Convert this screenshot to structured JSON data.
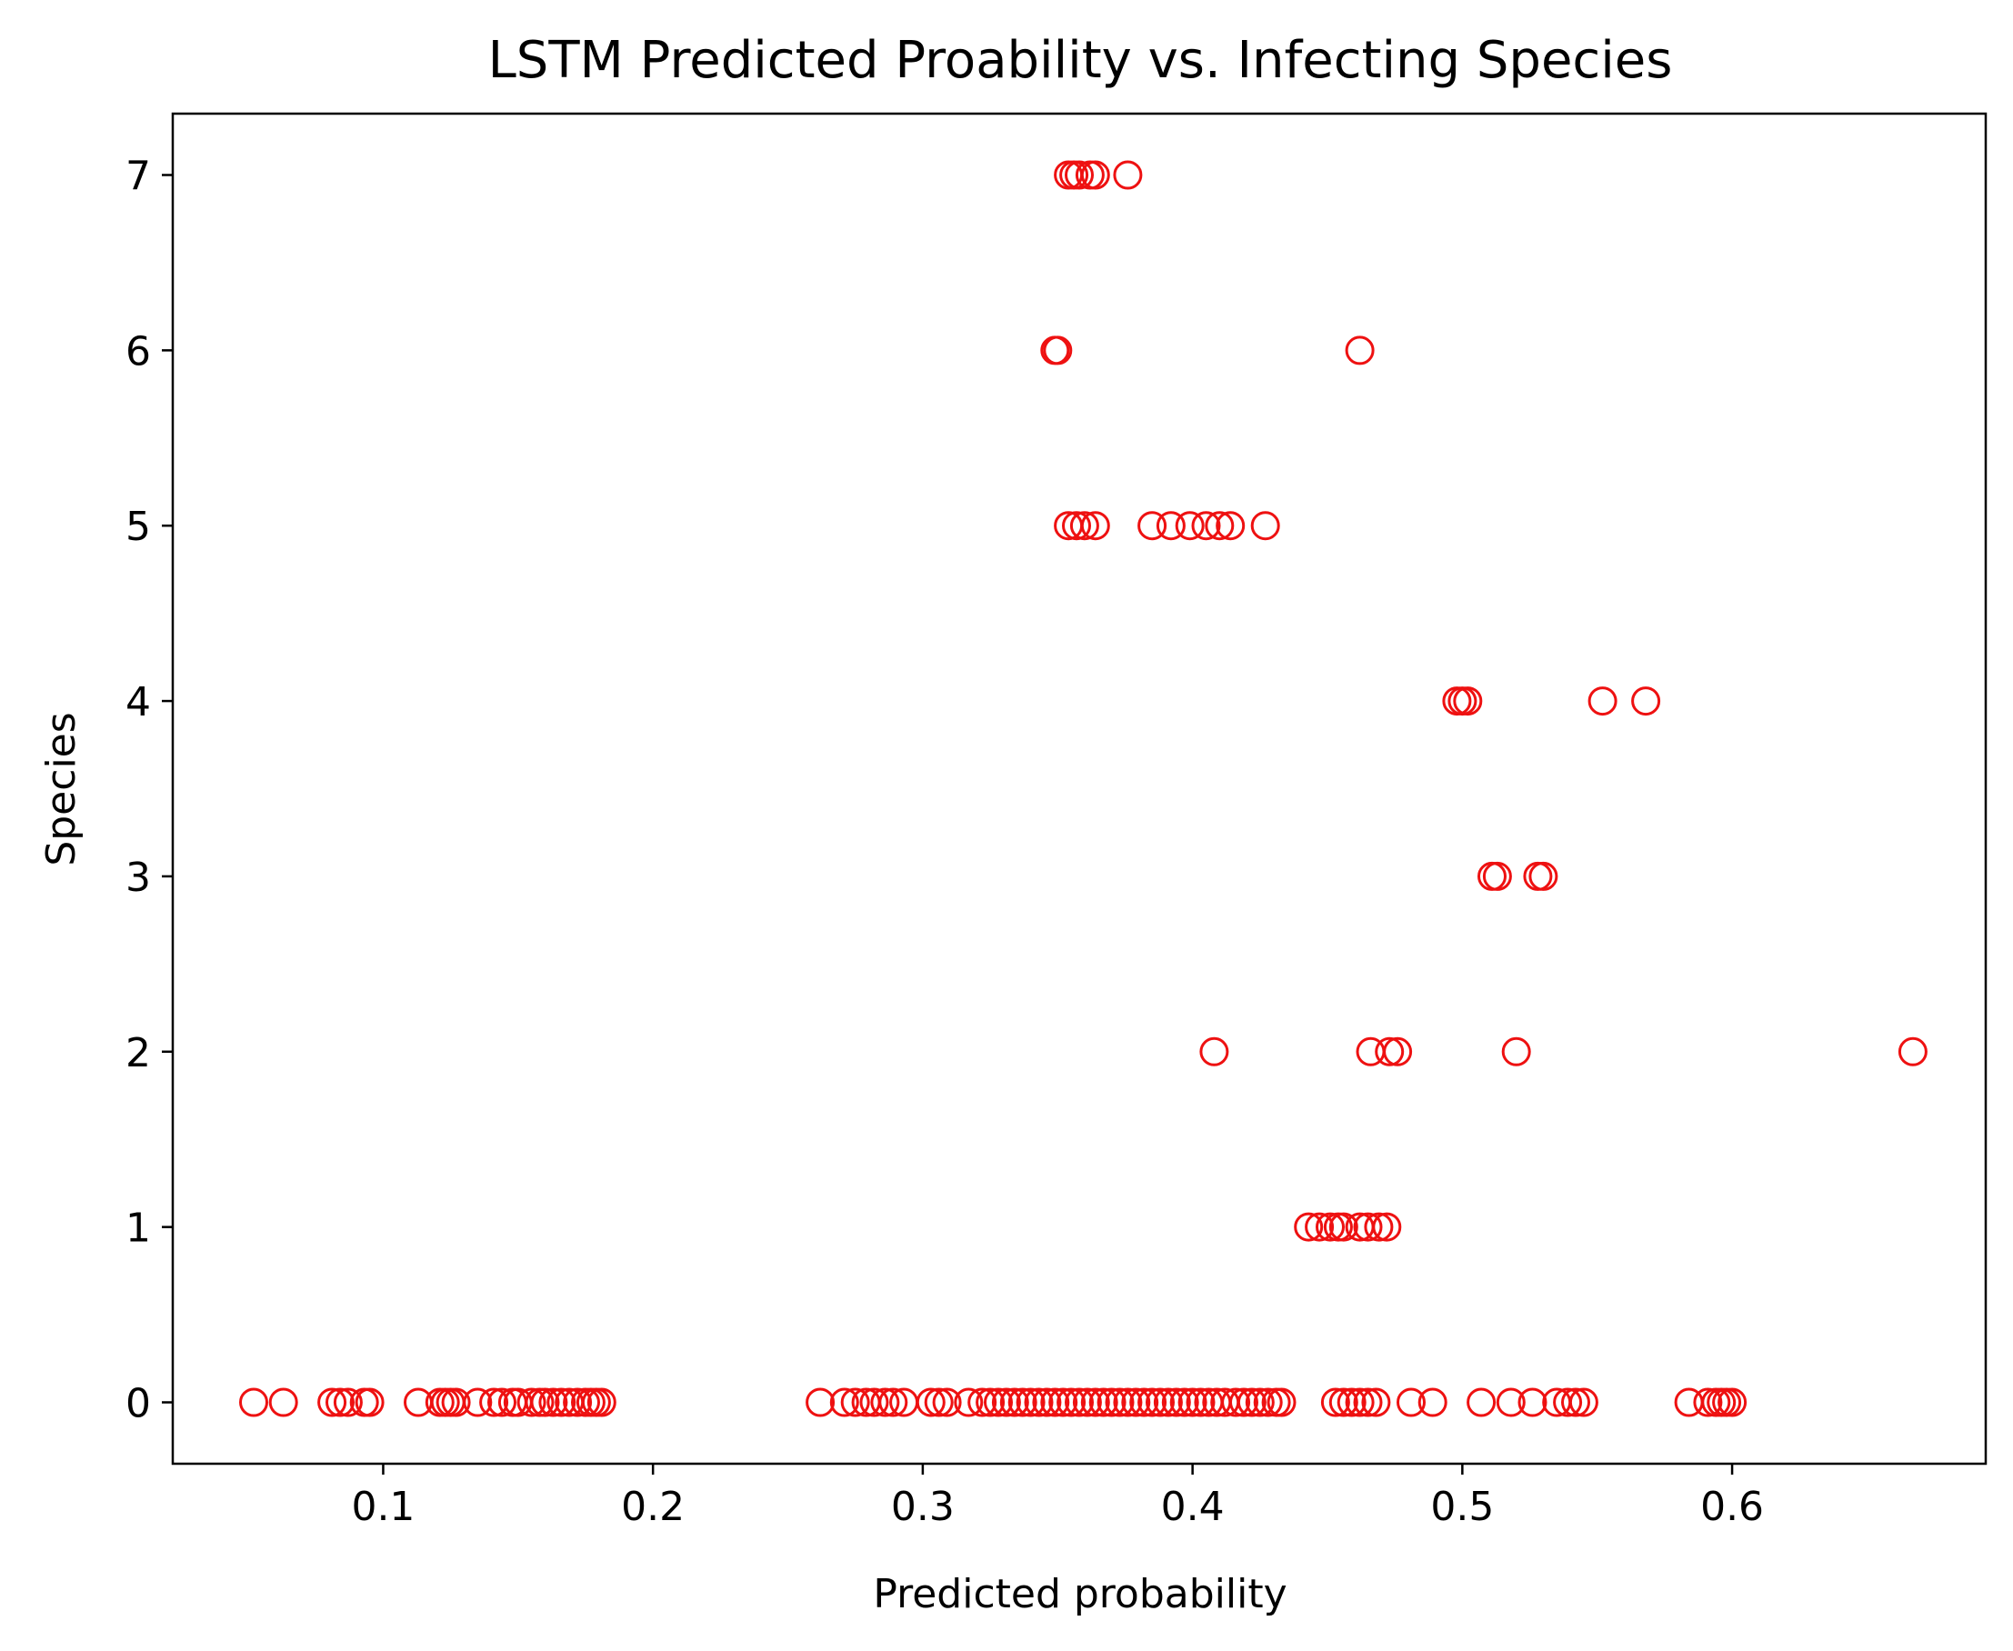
{
  "chart_data": {
    "type": "scatter",
    "title": "LSTM Predicted Proability vs. Infecting Species",
    "xlabel": "Predicted probability",
    "ylabel": "Species",
    "xlim": [
      0.022,
      0.694
    ],
    "ylim": [
      -0.35,
      7.35
    ],
    "xticks": [
      0.1,
      0.2,
      0.3,
      0.4,
      0.5,
      0.6
    ],
    "xtick_labels": [
      "0.1",
      "0.2",
      "0.3",
      "0.4",
      "0.5",
      "0.6"
    ],
    "yticks": [
      0,
      1,
      2,
      3,
      4,
      5,
      6,
      7
    ],
    "ytick_labels": [
      "0",
      "1",
      "2",
      "3",
      "4",
      "5",
      "6",
      "7"
    ],
    "grid": false,
    "marker": "open-circle",
    "marker_color": "#ee1111",
    "series": [
      {
        "points": [
          [
            0.052,
            0
          ],
          [
            0.063,
            0
          ],
          [
            0.081,
            0
          ],
          [
            0.084,
            0
          ],
          [
            0.087,
            0
          ],
          [
            0.093,
            0
          ],
          [
            0.095,
            0
          ],
          [
            0.113,
            0
          ],
          [
            0.121,
            0
          ],
          [
            0.123,
            0
          ],
          [
            0.125,
            0
          ],
          [
            0.127,
            0
          ],
          [
            0.135,
            0
          ],
          [
            0.141,
            0
          ],
          [
            0.144,
            0
          ],
          [
            0.148,
            0
          ],
          [
            0.15,
            0
          ],
          [
            0.155,
            0
          ],
          [
            0.158,
            0
          ],
          [
            0.16,
            0
          ],
          [
            0.163,
            0
          ],
          [
            0.166,
            0
          ],
          [
            0.169,
            0
          ],
          [
            0.172,
            0
          ],
          [
            0.175,
            0
          ],
          [
            0.177,
            0
          ],
          [
            0.179,
            0
          ],
          [
            0.181,
            0
          ],
          [
            0.262,
            0
          ],
          [
            0.271,
            0
          ],
          [
            0.275,
            0
          ],
          [
            0.279,
            0
          ],
          [
            0.282,
            0
          ],
          [
            0.286,
            0
          ],
          [
            0.289,
            0
          ],
          [
            0.293,
            0
          ],
          [
            0.303,
            0
          ],
          [
            0.306,
            0
          ],
          [
            0.309,
            0
          ],
          [
            0.317,
            0
          ],
          [
            0.322,
            0
          ],
          [
            0.325,
            0
          ],
          [
            0.328,
            0
          ],
          [
            0.331,
            0
          ],
          [
            0.334,
            0
          ],
          [
            0.337,
            0
          ],
          [
            0.34,
            0
          ],
          [
            0.343,
            0
          ],
          [
            0.346,
            0
          ],
          [
            0.349,
            0
          ],
          [
            0.352,
            0
          ],
          [
            0.355,
            0
          ],
          [
            0.358,
            0
          ],
          [
            0.361,
            0
          ],
          [
            0.364,
            0
          ],
          [
            0.367,
            0
          ],
          [
            0.37,
            0
          ],
          [
            0.373,
            0
          ],
          [
            0.376,
            0
          ],
          [
            0.379,
            0
          ],
          [
            0.382,
            0
          ],
          [
            0.385,
            0
          ],
          [
            0.388,
            0
          ],
          [
            0.391,
            0
          ],
          [
            0.394,
            0
          ],
          [
            0.397,
            0
          ],
          [
            0.4,
            0
          ],
          [
            0.403,
            0
          ],
          [
            0.406,
            0
          ],
          [
            0.409,
            0
          ],
          [
            0.412,
            0
          ],
          [
            0.416,
            0
          ],
          [
            0.419,
            0
          ],
          [
            0.422,
            0
          ],
          [
            0.425,
            0
          ],
          [
            0.428,
            0
          ],
          [
            0.431,
            0
          ],
          [
            0.433,
            0
          ],
          [
            0.453,
            0
          ],
          [
            0.456,
            0
          ],
          [
            0.459,
            0
          ],
          [
            0.462,
            0
          ],
          [
            0.465,
            0
          ],
          [
            0.468,
            0
          ],
          [
            0.481,
            0
          ],
          [
            0.489,
            0
          ],
          [
            0.507,
            0
          ],
          [
            0.518,
            0
          ],
          [
            0.526,
            0
          ],
          [
            0.535,
            0
          ],
          [
            0.539,
            0
          ],
          [
            0.542,
            0
          ],
          [
            0.545,
            0
          ],
          [
            0.584,
            0
          ],
          [
            0.591,
            0
          ],
          [
            0.594,
            0
          ],
          [
            0.596,
            0
          ],
          [
            0.598,
            0
          ],
          [
            0.6,
            0
          ],
          [
            0.443,
            1
          ],
          [
            0.447,
            1
          ],
          [
            0.451,
            1
          ],
          [
            0.454,
            1
          ],
          [
            0.456,
            1
          ],
          [
            0.462,
            1
          ],
          [
            0.465,
            1
          ],
          [
            0.469,
            1
          ],
          [
            0.472,
            1
          ],
          [
            0.408,
            2
          ],
          [
            0.466,
            2
          ],
          [
            0.473,
            2
          ],
          [
            0.476,
            2
          ],
          [
            0.52,
            2
          ],
          [
            0.667,
            2
          ],
          [
            0.511,
            3
          ],
          [
            0.513,
            3
          ],
          [
            0.528,
            3
          ],
          [
            0.53,
            3
          ],
          [
            0.498,
            4
          ],
          [
            0.5,
            4
          ],
          [
            0.502,
            4
          ],
          [
            0.552,
            4
          ],
          [
            0.568,
            4
          ],
          [
            0.354,
            5
          ],
          [
            0.357,
            5
          ],
          [
            0.36,
            5
          ],
          [
            0.364,
            5
          ],
          [
            0.385,
            5
          ],
          [
            0.392,
            5
          ],
          [
            0.399,
            5
          ],
          [
            0.405,
            5
          ],
          [
            0.41,
            5
          ],
          [
            0.414,
            5
          ],
          [
            0.427,
            5
          ],
          [
            0.349,
            6
          ],
          [
            0.35,
            6
          ],
          [
            0.462,
            6
          ],
          [
            0.354,
            7
          ],
          [
            0.356,
            7
          ],
          [
            0.358,
            7
          ],
          [
            0.362,
            7
          ],
          [
            0.364,
            7
          ],
          [
            0.376,
            7
          ]
        ]
      }
    ]
  }
}
